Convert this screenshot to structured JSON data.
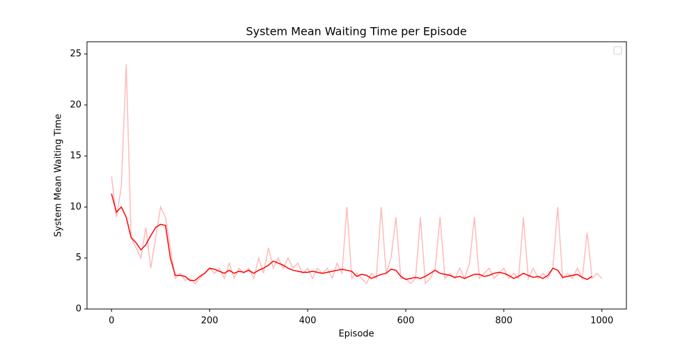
{
  "chart_data": {
    "type": "line",
    "title": "System Mean Waiting Time per Episode",
    "x_label": "Episode",
    "y_label": "System Mean Waiting Time",
    "xlim": [
      -50,
      1050
    ],
    "ylim": [
      0,
      26.2
    ],
    "xticks": [
      0,
      200,
      400,
      600,
      800,
      1000
    ],
    "yticks": [
      0,
      5,
      10,
      15,
      20,
      25
    ],
    "series": [
      {
        "color": "#ffbaba",
        "x": [
          0,
          10,
          20,
          30,
          40,
          50,
          60,
          70,
          80,
          90,
          100,
          110,
          120,
          130,
          140,
          150,
          160,
          170,
          180,
          190,
          200,
          210,
          220,
          230,
          240,
          250,
          260,
          270,
          280,
          290,
          300,
          310,
          320,
          330,
          340,
          350,
          360,
          370,
          380,
          390,
          400,
          410,
          420,
          430,
          440,
          450,
          460,
          470,
          480,
          490,
          500,
          510,
          520,
          530,
          540,
          550,
          560,
          570,
          580,
          590,
          600,
          610,
          620,
          630,
          640,
          650,
          660,
          670,
          680,
          690,
          700,
          710,
          720,
          730,
          740,
          750,
          760,
          770,
          780,
          790,
          800,
          810,
          820,
          830,
          840,
          850,
          860,
          870,
          880,
          890,
          900,
          910,
          920,
          930,
          940,
          950,
          960,
          970,
          980,
          990,
          1000
        ],
        "values": [
          13,
          9,
          12,
          24,
          7,
          6,
          5,
          8,
          4,
          7,
          10,
          9,
          6,
          3,
          3.5,
          2.8,
          3,
          2.5,
          3,
          3.5,
          4,
          3.5,
          4,
          3,
          4.5,
          3,
          4,
          3.5,
          4,
          3,
          5,
          3.5,
          6,
          4,
          5,
          4,
          5,
          4,
          4.5,
          3.5,
          4,
          3,
          4,
          3.5,
          4,
          3,
          4.5,
          3.5,
          10,
          3,
          3.5,
          3,
          2.5,
          3.5,
          3,
          10,
          3.5,
          5,
          9,
          3,
          3,
          2.5,
          3,
          9,
          2.5,
          3,
          4,
          9,
          3,
          3.5,
          3,
          4,
          3,
          4.5,
          9,
          3,
          3.5,
          4,
          3,
          3.5,
          4,
          3,
          3.5,
          3,
          9,
          3,
          4,
          3,
          3.5,
          3,
          4,
          10,
          3,
          3.5,
          3,
          4,
          3,
          7.5,
          3,
          3.5,
          3
        ]
      },
      {
        "color": "#ff0000",
        "x": [
          0,
          10,
          20,
          30,
          40,
          50,
          60,
          70,
          80,
          90,
          100,
          110,
          120,
          130,
          140,
          150,
          160,
          170,
          180,
          190,
          200,
          210,
          220,
          230,
          240,
          250,
          260,
          270,
          280,
          290,
          300,
          310,
          320,
          330,
          340,
          350,
          360,
          370,
          380,
          390,
          400,
          410,
          420,
          430,
          440,
          450,
          460,
          470,
          480,
          490,
          500,
          510,
          520,
          530,
          540,
          550,
          560,
          570,
          580,
          590,
          600,
          610,
          620,
          630,
          640,
          650,
          660,
          670,
          680,
          690,
          700,
          710,
          720,
          730,
          740,
          750,
          760,
          770,
          780,
          790,
          800,
          810,
          820,
          830,
          840,
          850,
          860,
          870,
          880,
          890,
          900,
          910,
          920,
          930,
          940,
          950,
          960,
          970,
          980
        ],
        "values": [
          11.3,
          9.5,
          10,
          9,
          7,
          6.5,
          5.8,
          6.3,
          7.2,
          8,
          8.3,
          8.2,
          5,
          3.3,
          3.3,
          3.2,
          2.8,
          2.8,
          3.2,
          3.5,
          4,
          3.9,
          3.7,
          3.5,
          3.8,
          3.5,
          3.7,
          3.6,
          3.8,
          3.5,
          3.8,
          4,
          4.3,
          4.7,
          4.5,
          4.3,
          4,
          3.8,
          3.7,
          3.6,
          3.6,
          3.7,
          3.6,
          3.5,
          3.6,
          3.7,
          3.8,
          3.9,
          3.8,
          3.7,
          3.2,
          3.4,
          3.3,
          3,
          3.2,
          3.4,
          3.5,
          3.9,
          3.8,
          3.2,
          2.9,
          3,
          3.1,
          3,
          3.2,
          3.5,
          3.8,
          3.5,
          3.4,
          3.3,
          3.1,
          3.2,
          3,
          3.2,
          3.4,
          3.4,
          3.2,
          3.3,
          3.5,
          3.6,
          3.5,
          3.3,
          3,
          3.2,
          3.5,
          3.3,
          3.1,
          3.2,
          3,
          3.3,
          4,
          3.8,
          3.1,
          3.2,
          3.3,
          3.4,
          3.1,
          2.9,
          3.2
        ]
      }
    ]
  }
}
